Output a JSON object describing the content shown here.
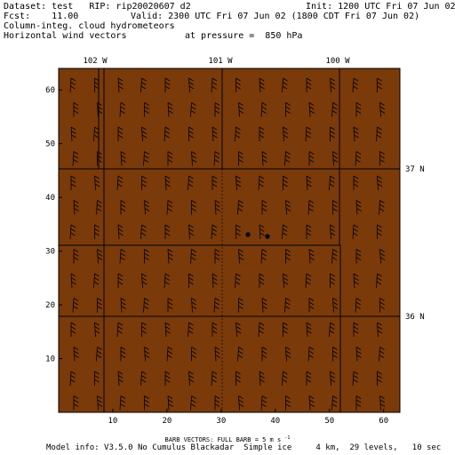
{
  "header": {
    "dataset": "Dataset: test   RIP: rip20020607 d2",
    "init": "Init: 1200 UTC Fri 07 Jun 02",
    "fcst": "Fcst:    11.00",
    "valid": "Valid: 2300 UTC Fri 07 Jun 02 (1800 CDT Fri 07 Jun 02)",
    "field1": "Column-integ. cloud hydrometeors",
    "field2": "Horizontal wind vectors",
    "pressure": "at pressure =  850 hPa"
  },
  "map": {
    "fill_color": "#7a3a0a",
    "x_ticks": [
      "10",
      "20",
      "30",
      "40",
      "50",
      "60"
    ],
    "y_ticks": [
      "10",
      "20",
      "30",
      "40",
      "50",
      "60"
    ],
    "lon_labels": [
      "102 W",
      "101 W",
      "100 W"
    ],
    "lat_labels": [
      "37 N",
      "36 N"
    ]
  },
  "footer": {
    "barb_note": "BARB VECTORS:  FULL BARB = 5 m s",
    "barb_sup": "-1",
    "model_info": "Model info: V3.5.0 No Cumulus Blackadar  Simple ice     4 km,  29 levels,   10 sec"
  }
}
